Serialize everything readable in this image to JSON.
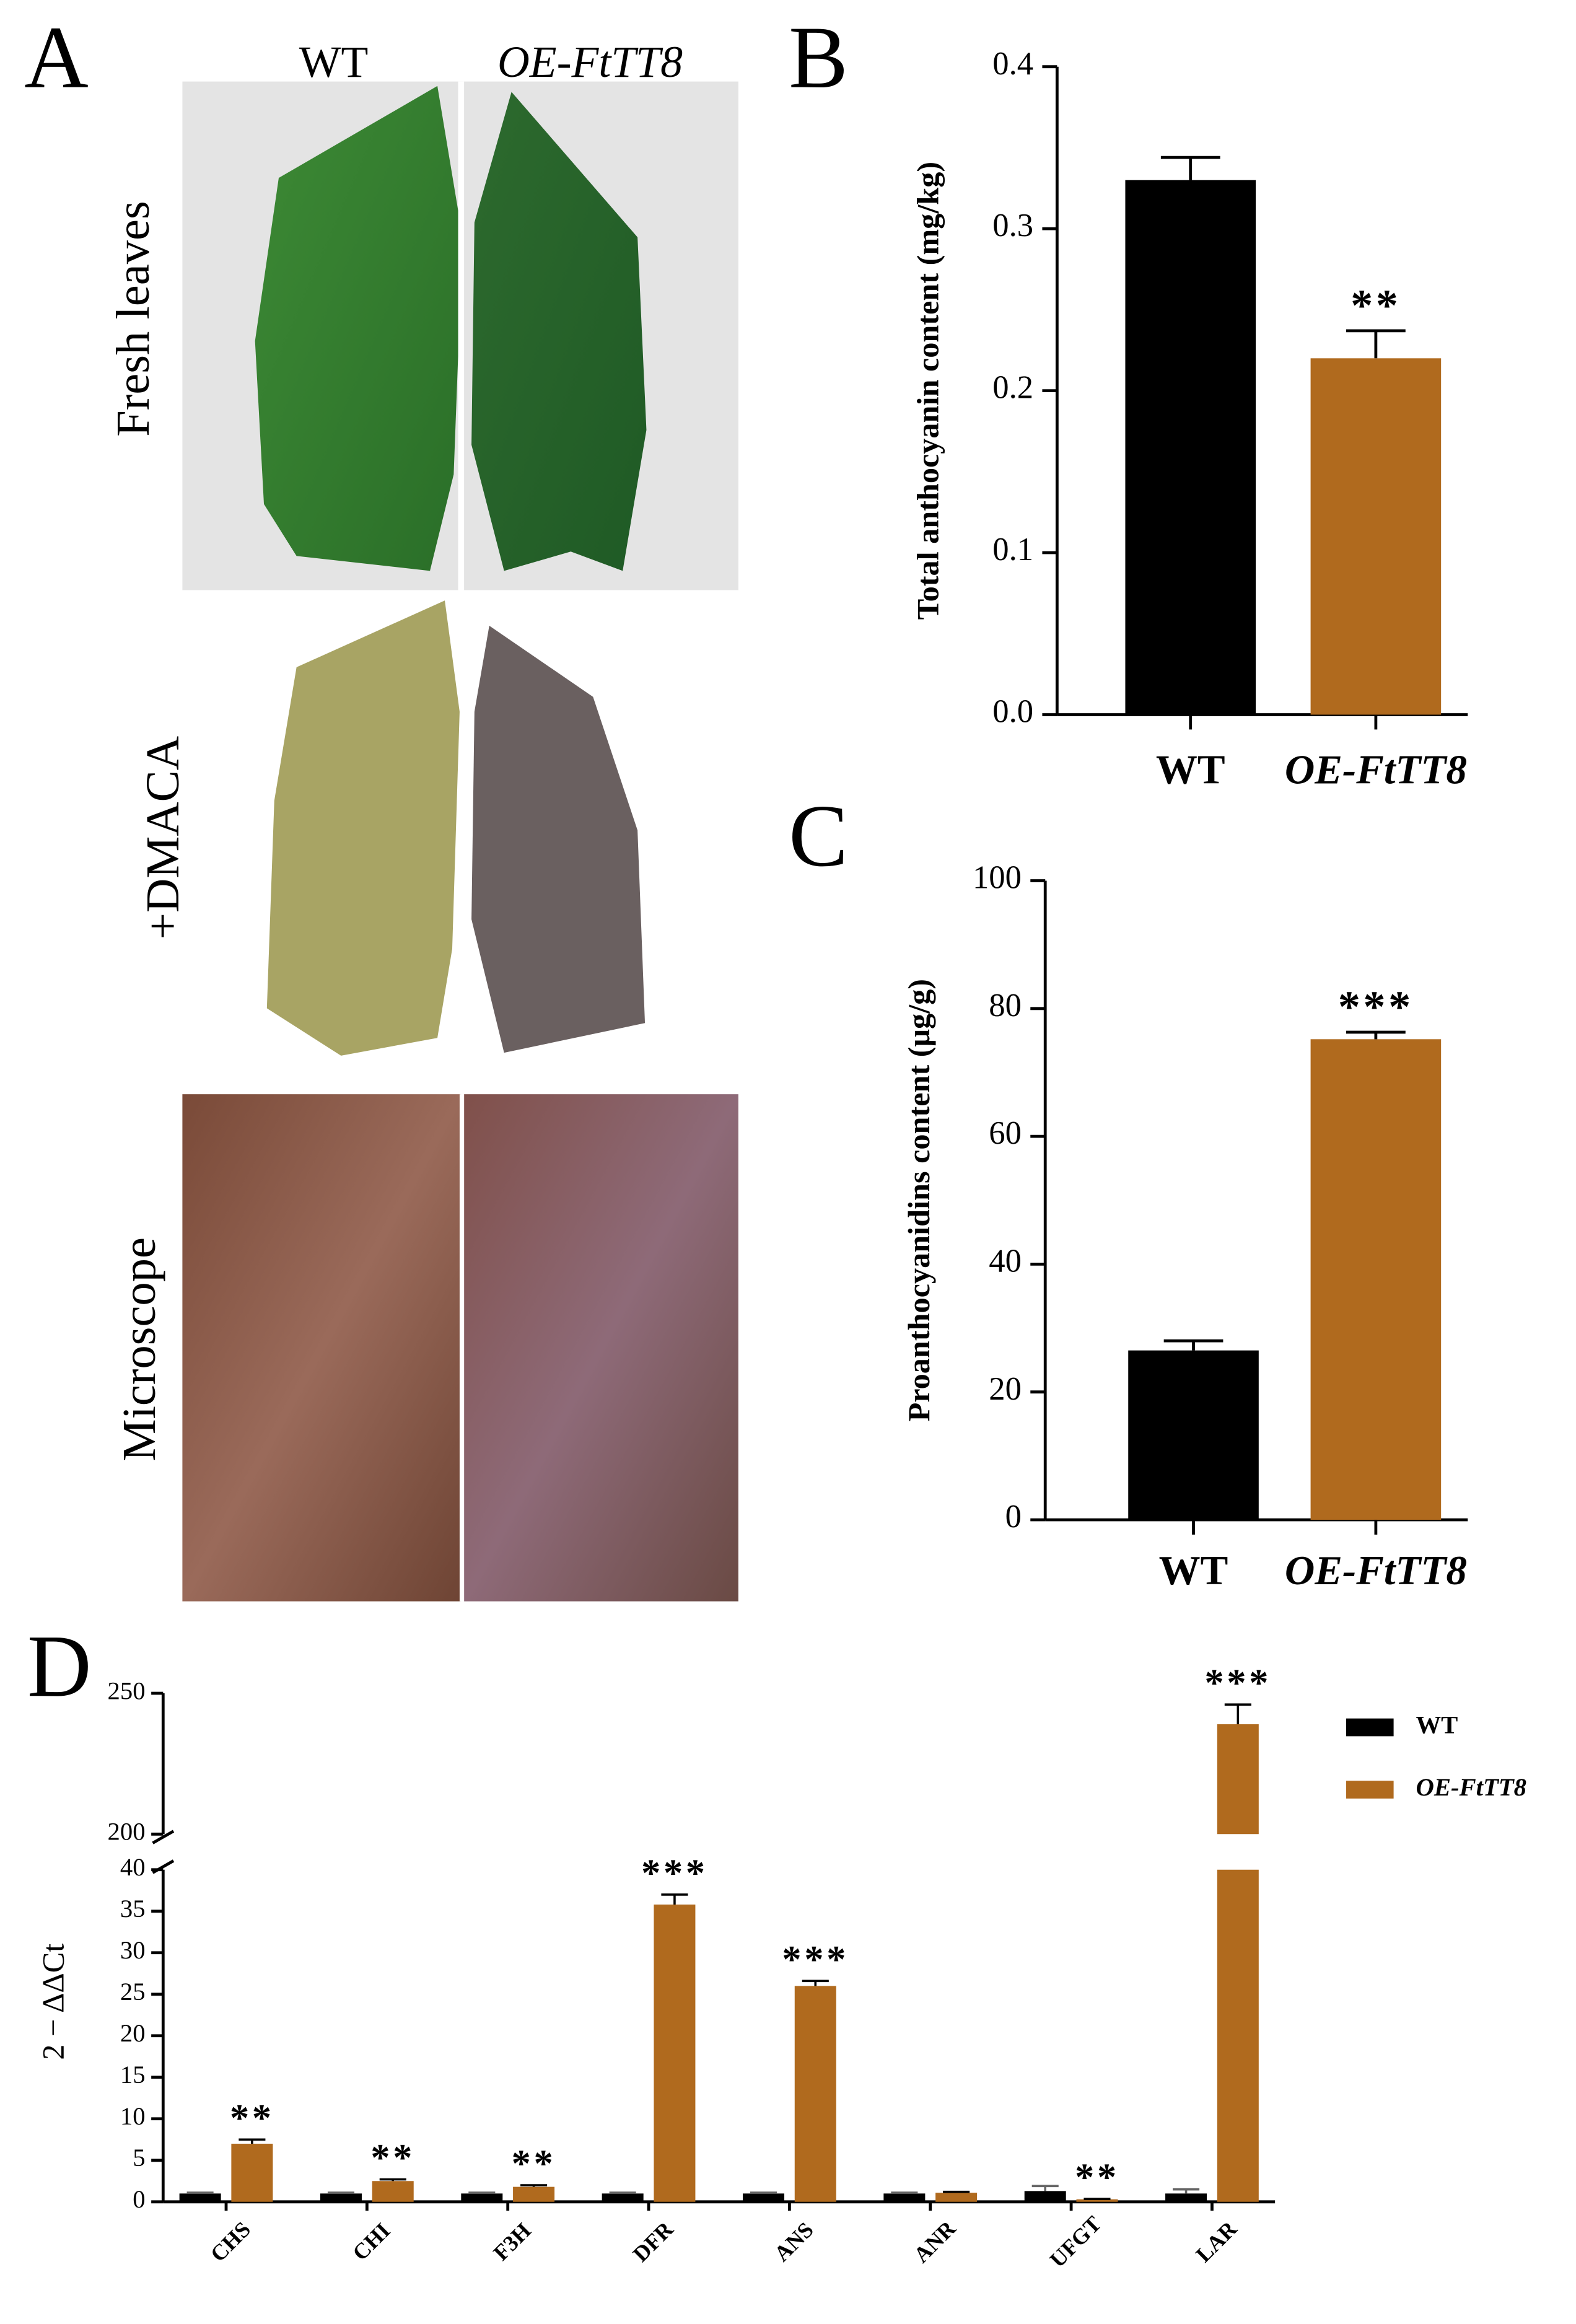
{
  "panel_a": {
    "label": "A",
    "columns": [
      "WT",
      "OE-FtTT8"
    ],
    "rows": [
      "Fresh leaves",
      "+DMACA",
      "Microscope"
    ]
  },
  "chart_data": [
    {
      "type": "bar",
      "panel": "B",
      "ylabel": "Total anthocyanin content (mg/kg)",
      "categories": [
        "WT",
        "OE-FtTT8"
      ],
      "values": [
        0.33,
        0.22
      ],
      "errors": [
        0.014,
        0.017
      ],
      "colors": [
        "#000000",
        "#b06a1e"
      ],
      "annotations": [
        null,
        "**"
      ],
      "ylim": [
        0,
        0.4
      ],
      "yticks": [
        {
          "value": 0,
          "label": "0.0"
        },
        0.1,
        0.2,
        0.3,
        0.4
      ]
    },
    {
      "type": "bar",
      "panel": "C",
      "ylabel": "Proanthocyanidins content (μg/g)",
      "categories": [
        "WT",
        "OE-FtTT8"
      ],
      "values": [
        26.5,
        75.2
      ],
      "errors": [
        1.5,
        1.1
      ],
      "colors": [
        "#000000",
        "#b06a1e"
      ],
      "annotations": [
        null,
        "***"
      ],
      "ylim": [
        0,
        100
      ],
      "yticks": [
        0,
        20,
        40,
        60,
        80,
        100
      ]
    },
    {
      "type": "grouped_bar",
      "panel": "D",
      "ylabel": "2 − ΔΔCt",
      "categories": [
        "CHS",
        "CHI",
        "F3H",
        "DFR",
        "ANS",
        "ANR",
        "UFGT",
        "LAR"
      ],
      "series": [
        {
          "name": "WT",
          "color": "#000000",
          "values": [
            1,
            1,
            1,
            1,
            1,
            1,
            1.3,
            1
          ],
          "errors": [
            0.1,
            0.1,
            0.1,
            0.1,
            0.1,
            0.1,
            0.6,
            0.5
          ]
        },
        {
          "name": "OE-FtTT8",
          "color": "#b06a1e",
          "values": [
            7,
            2.5,
            1.8,
            35.8,
            26,
            1.1,
            0.3,
            239
          ],
          "errors": [
            0.5,
            0.2,
            0.2,
            1.2,
            0.6,
            0.1,
            0.05,
            7
          ],
          "annotations": [
            "**",
            "**",
            "**",
            "***",
            "***",
            null,
            "**",
            "***"
          ]
        }
      ],
      "ylim": [
        0,
        250
      ],
      "ybreak": [
        40,
        200
      ],
      "yticks": [
        0,
        5,
        10,
        15,
        20,
        25,
        30,
        35,
        40,
        200,
        250
      ],
      "legend": "upper right"
    }
  ]
}
